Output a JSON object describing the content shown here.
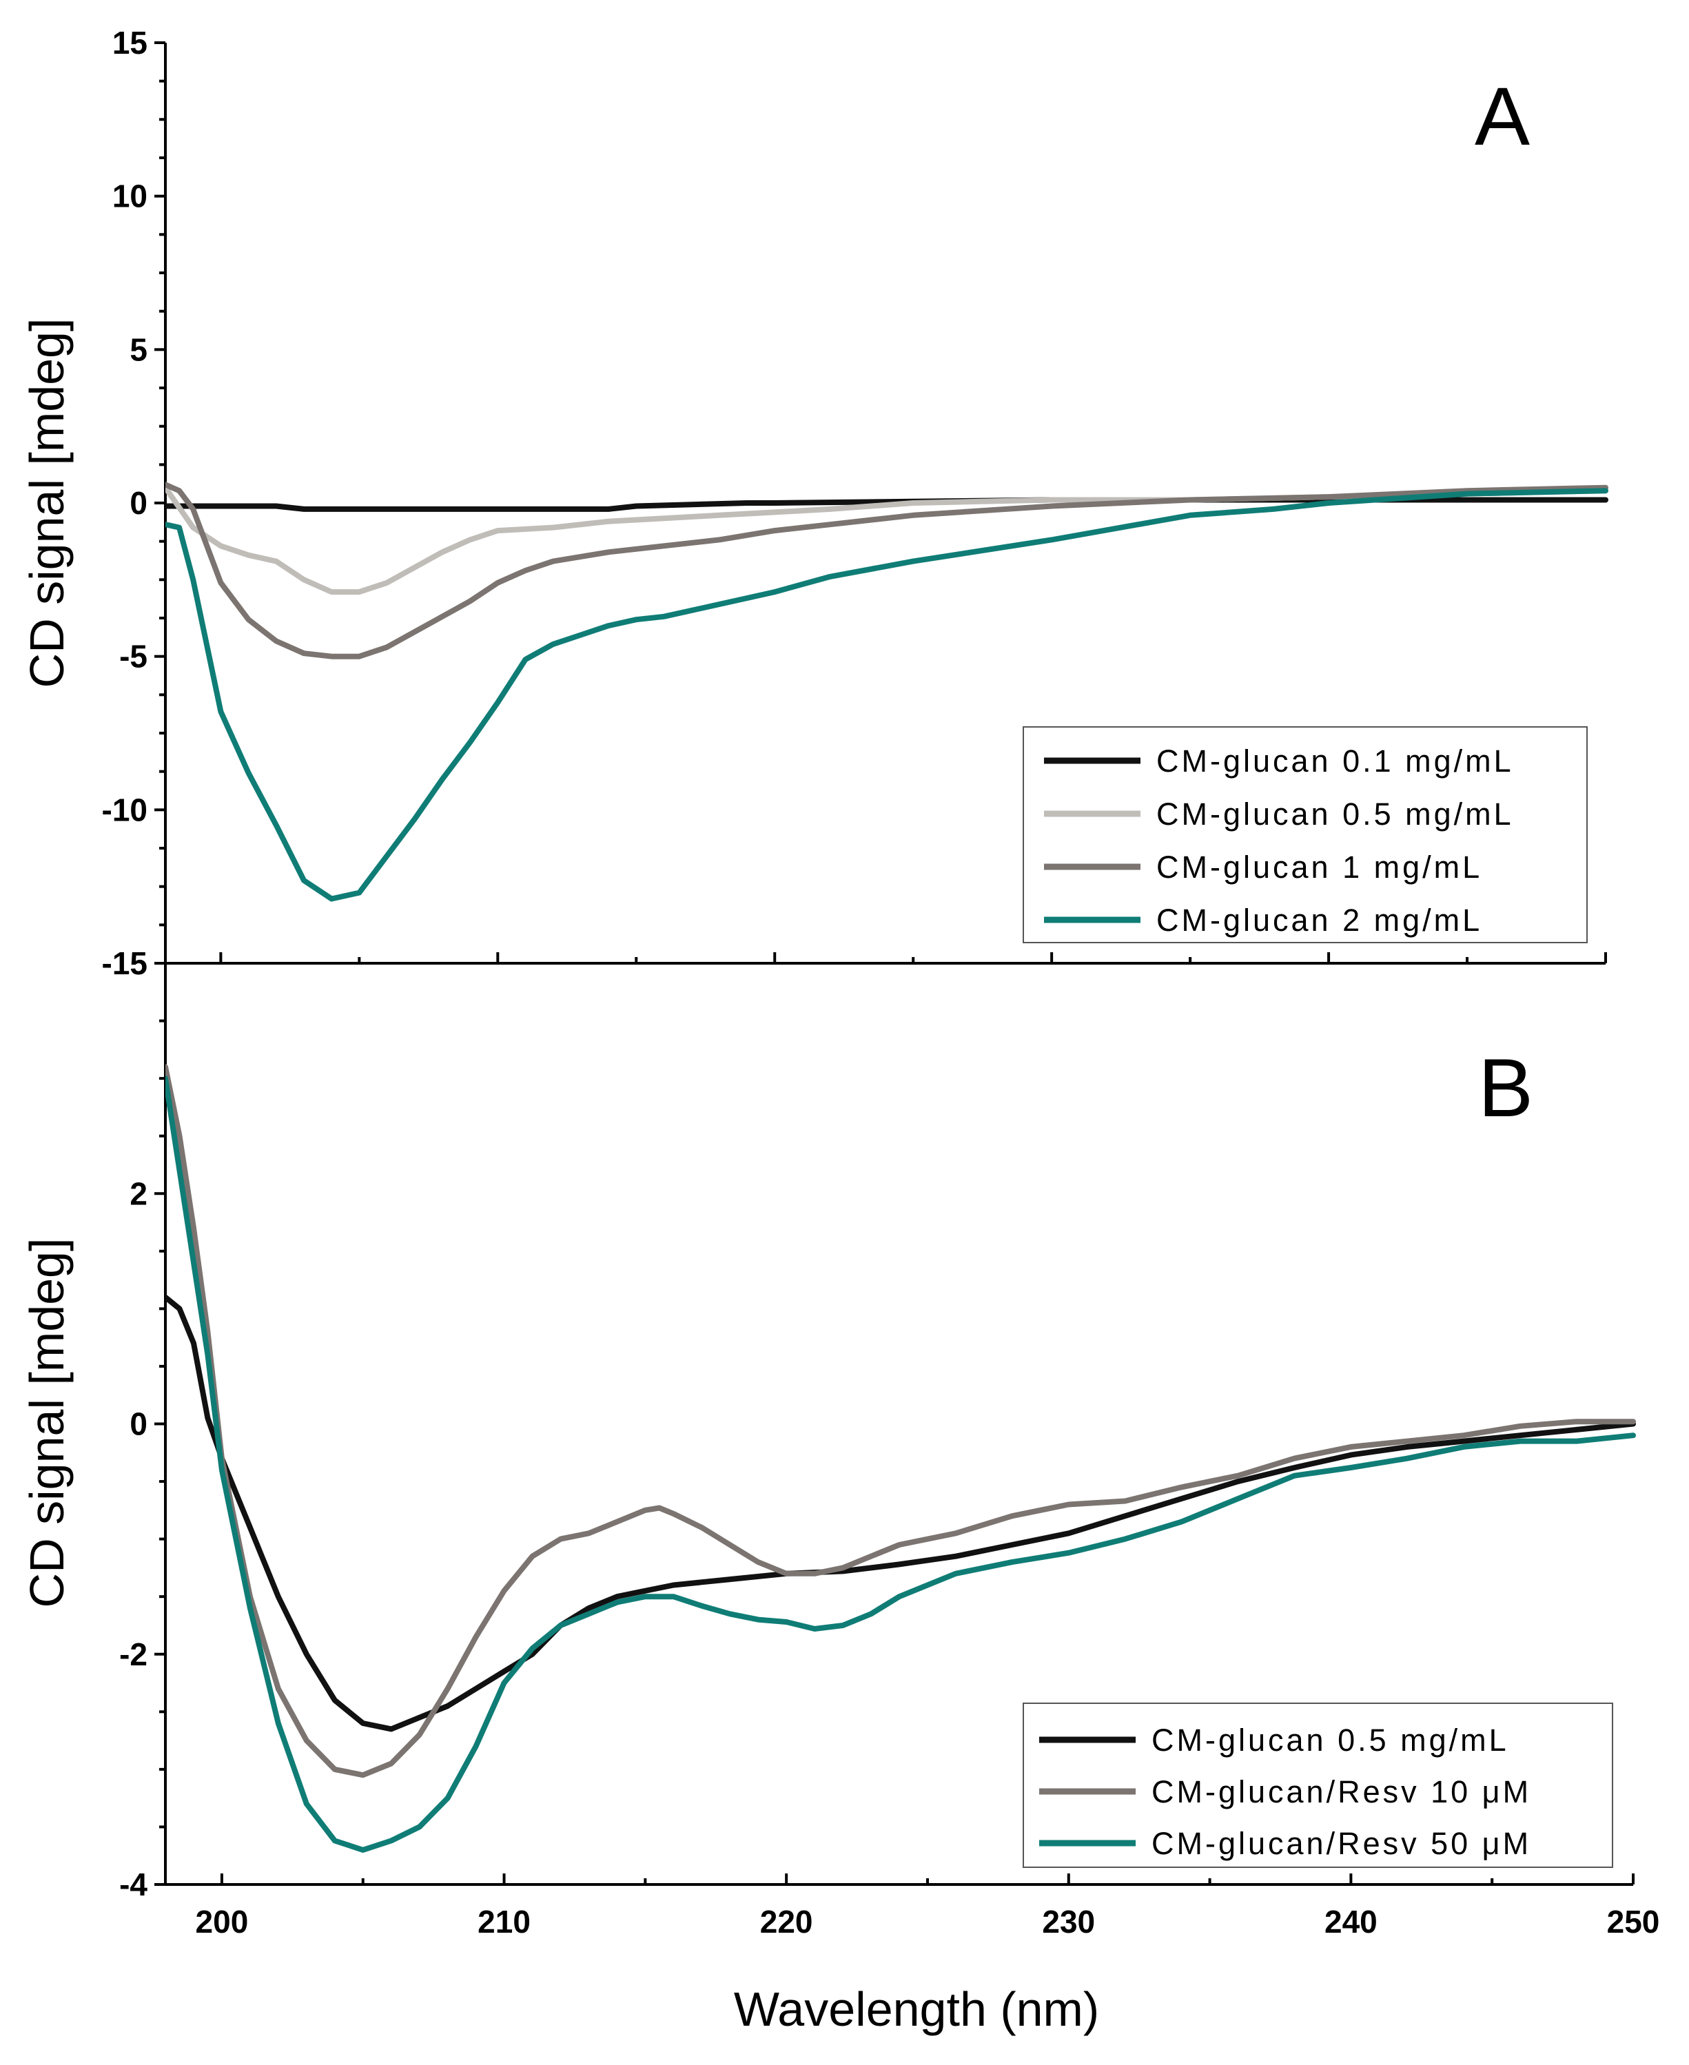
{
  "chart_data": [
    {
      "type": "line",
      "panel": "A",
      "ylabel": "CD signal [mdeg]",
      "xlim": [
        198,
        250
      ],
      "ylim": [
        -15,
        15
      ],
      "yticks": [
        -15,
        -10,
        -5,
        0,
        5,
        10,
        15
      ],
      "ytick_labels": [
        "-15",
        "-10",
        "-5",
        "0",
        "5",
        "10",
        "15"
      ],
      "legend_position": "bottom-right",
      "series": [
        {
          "name": "CM-glucan 0.1 mg/mL",
          "color": "#111111",
          "x": [
            198,
            200,
            202,
            203,
            205,
            210,
            214,
            215,
            219,
            220,
            225,
            230,
            240,
            250
          ],
          "y": [
            -0.1,
            -0.1,
            -0.1,
            -0.2,
            -0.2,
            -0.2,
            -0.2,
            -0.1,
            0,
            0,
            0.05,
            0.1,
            0.1,
            0.1
          ]
        },
        {
          "name": "CM-glucan 0.5 mg/mL",
          "color": "#c0bdb8",
          "x": [
            198,
            199,
            200,
            201,
            202,
            203,
            204,
            205,
            206,
            207,
            208,
            209,
            210,
            212,
            214,
            216,
            218,
            220,
            222,
            225,
            230,
            235,
            240,
            245,
            250
          ],
          "y": [
            0.5,
            -0.8,
            -1.4,
            -1.7,
            -1.9,
            -2.5,
            -2.9,
            -2.9,
            -2.6,
            -2.1,
            -1.6,
            -1.2,
            -0.9,
            -0.8,
            -0.6,
            -0.5,
            -0.4,
            -0.3,
            -0.2,
            0,
            0.1,
            0.1,
            0.2,
            0.3,
            0.4
          ]
        },
        {
          "name": "CM-glucan 1 mg/mL",
          "color": "#7b7470",
          "x": [
            198,
            198.5,
            199,
            200,
            201,
            202,
            203,
            204,
            205,
            206,
            207,
            208,
            209,
            210,
            211,
            212,
            214,
            216,
            218,
            220,
            222,
            225,
            230,
            235,
            240,
            245,
            250
          ],
          "y": [
            0.6,
            0.4,
            -0.2,
            -2.6,
            -3.8,
            -4.5,
            -4.9,
            -5.0,
            -5.0,
            -4.7,
            -4.2,
            -3.7,
            -3.2,
            -2.6,
            -2.2,
            -1.9,
            -1.6,
            -1.4,
            -1.2,
            -0.9,
            -0.7,
            -0.4,
            -0.1,
            0.1,
            0.2,
            0.4,
            0.5
          ]
        },
        {
          "name": "CM-glucan 2 mg/mL",
          "color": "#0f7d76",
          "x": [
            198,
            198.5,
            199,
            200,
            201,
            202,
            203,
            204,
            205,
            206,
            207,
            208,
            209,
            210,
            211,
            212,
            213,
            214,
            215,
            216,
            218,
            220,
            222,
            225,
            230,
            235,
            238,
            240,
            245,
            250
          ],
          "y": [
            -0.7,
            -0.8,
            -2.5,
            -6.8,
            -8.8,
            -10.5,
            -12.3,
            -12.9,
            -12.7,
            -11.5,
            -10.3,
            -9.0,
            -7.8,
            -6.5,
            -5.1,
            -4.6,
            -4.3,
            -4.0,
            -3.8,
            -3.7,
            -3.3,
            -2.9,
            -2.4,
            -1.9,
            -1.2,
            -0.4,
            -0.2,
            0,
            0.3,
            0.4
          ]
        }
      ]
    },
    {
      "type": "line",
      "panel": "B",
      "ylabel": "CD signal [mdeg]",
      "xlabel": "Wavelength (nm)",
      "xlim": [
        198,
        250
      ],
      "ylim": [
        -4,
        4
      ],
      "xticks": [
        200,
        210,
        220,
        230,
        240,
        250
      ],
      "xtick_labels": [
        "200",
        "210",
        "220",
        "230",
        "240",
        "250"
      ],
      "yticks": [
        -4,
        -2,
        0,
        2
      ],
      "ytick_labels": [
        "-4",
        "-2",
        "0",
        "2"
      ],
      "legend_position": "bottom-right",
      "series": [
        {
          "name": "CM-glucan 0.5 mg/mL",
          "color": "#111111",
          "x": [
            198,
            198.5,
            199,
            199.5,
            200,
            201,
            202,
            203,
            204,
            205,
            206,
            207,
            208,
            209,
            210,
            211,
            212,
            213,
            214,
            215,
            216,
            218,
            220,
            222,
            224,
            226,
            228,
            230,
            232,
            234,
            236,
            238,
            240,
            242,
            244,
            246,
            248,
            250
          ],
          "y": [
            1.1,
            1.0,
            0.7,
            0.05,
            -0.3,
            -0.9,
            -1.5,
            -2.0,
            -2.4,
            -2.6,
            -2.65,
            -2.55,
            -2.45,
            -2.3,
            -2.15,
            -2.0,
            -1.75,
            -1.6,
            -1.5,
            -1.45,
            -1.4,
            -1.35,
            -1.3,
            -1.28,
            -1.22,
            -1.15,
            -1.05,
            -0.95,
            -0.8,
            -0.65,
            -0.5,
            -0.38,
            -0.27,
            -0.2,
            -0.15,
            -0.1,
            -0.05,
            0
          ]
        },
        {
          "name": "CM-glucan/Resv 10 μM",
          "color": "#7b7470",
          "x": [
            198,
            198.5,
            199,
            199.5,
            200,
            201,
            202,
            203,
            204,
            205,
            206,
            207,
            208,
            209,
            210,
            211,
            212,
            213,
            214,
            215,
            215.5,
            216,
            217,
            218,
            219,
            220,
            221,
            222,
            223,
            224,
            226,
            228,
            230,
            232,
            234,
            236,
            238,
            240,
            242,
            244,
            246,
            248,
            250
          ],
          "y": [
            3.1,
            2.5,
            1.7,
            0.8,
            -0.3,
            -1.5,
            -2.3,
            -2.75,
            -3.0,
            -3.05,
            -2.95,
            -2.7,
            -2.3,
            -1.85,
            -1.45,
            -1.15,
            -1.0,
            -0.95,
            -0.85,
            -0.75,
            -0.73,
            -0.78,
            -0.9,
            -1.05,
            -1.2,
            -1.3,
            -1.3,
            -1.25,
            -1.15,
            -1.05,
            -0.95,
            -0.8,
            -0.7,
            -0.67,
            -0.55,
            -0.45,
            -0.3,
            -0.2,
            -0.15,
            -0.1,
            -0.02,
            0.02,
            0.02
          ]
        },
        {
          "name": "CM-glucan/Resv 50 μM",
          "color": "#0f7d76",
          "x": [
            198,
            198.5,
            199,
            199.5,
            200,
            201,
            202,
            203,
            204,
            205,
            206,
            207,
            208,
            209,
            210,
            211,
            212,
            213,
            214,
            215,
            216,
            217,
            218,
            219,
            220,
            221,
            222,
            223,
            224,
            226,
            228,
            230,
            232,
            234,
            236,
            238,
            240,
            242,
            244,
            246,
            248,
            250
          ],
          "y": [
            3.0,
            2.2,
            1.4,
            0.6,
            -0.4,
            -1.6,
            -2.6,
            -3.3,
            -3.62,
            -3.7,
            -3.62,
            -3.5,
            -3.25,
            -2.8,
            -2.25,
            -1.95,
            -1.75,
            -1.65,
            -1.55,
            -1.5,
            -1.5,
            -1.58,
            -1.65,
            -1.7,
            -1.72,
            -1.78,
            -1.75,
            -1.65,
            -1.5,
            -1.3,
            -1.2,
            -1.12,
            -1.0,
            -0.85,
            -0.65,
            -0.45,
            -0.38,
            -0.3,
            -0.2,
            -0.15,
            -0.15,
            -0.1
          ]
        }
      ]
    }
  ]
}
